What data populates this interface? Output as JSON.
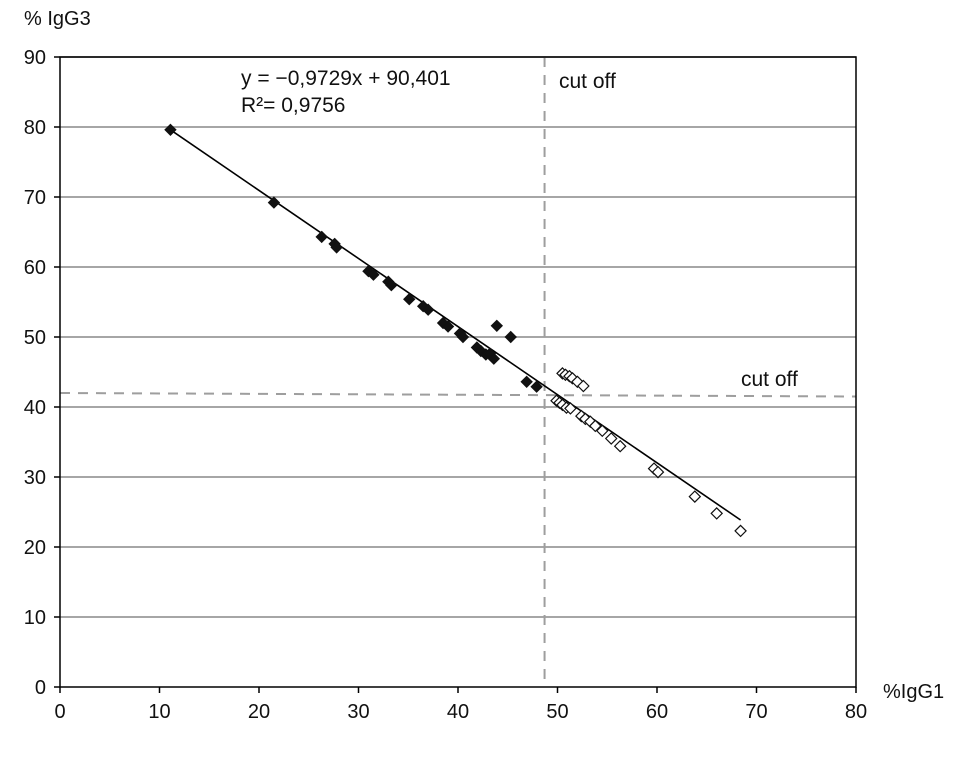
{
  "chart_data": {
    "type": "scatter",
    "xlabel": "%IgG1",
    "ylabel": "% IgG3",
    "xlim": [
      0,
      80
    ],
    "ylim": [
      0,
      90
    ],
    "x_ticks": [
      "0",
      "10",
      "20",
      "30",
      "40",
      "50",
      "60",
      "70",
      "80"
    ],
    "y_ticks": [
      "0",
      "10",
      "20",
      "30",
      "40",
      "50",
      "60",
      "70",
      "80",
      "90"
    ],
    "grid": "horizontal",
    "series": [
      {
        "marker": "filled-diamond",
        "color": "#111111",
        "points": [
          [
            11.1,
            79.6
          ],
          [
            21.5,
            69.2
          ],
          [
            26.3,
            64.3
          ],
          [
            27.6,
            63.3
          ],
          [
            27.8,
            62.8
          ],
          [
            31.0,
            59.4
          ],
          [
            31.5,
            58.9
          ],
          [
            33.0,
            57.9
          ],
          [
            33.3,
            57.4
          ],
          [
            35.1,
            55.4
          ],
          [
            36.5,
            54.4
          ],
          [
            37.0,
            53.9
          ],
          [
            38.5,
            52.0
          ],
          [
            39.0,
            51.5
          ],
          [
            40.2,
            50.5
          ],
          [
            40.5,
            50.0
          ],
          [
            41.9,
            48.5
          ],
          [
            42.3,
            48.0
          ],
          [
            42.8,
            47.5
          ],
          [
            43.2,
            47.6
          ],
          [
            43.6,
            46.9
          ],
          [
            43.9,
            51.6
          ],
          [
            45.3,
            50.0
          ],
          [
            46.9,
            43.6
          ],
          [
            47.9,
            42.9
          ]
        ]
      },
      {
        "marker": "open-diamond",
        "color": "#111111",
        "points": [
          [
            50.5,
            44.8
          ],
          [
            50.8,
            44.6
          ],
          [
            51.2,
            44.4
          ],
          [
            51.5,
            44.1
          ],
          [
            52.0,
            43.6
          ],
          [
            52.6,
            43.0
          ],
          [
            49.9,
            40.9
          ],
          [
            50.2,
            40.6
          ],
          [
            50.5,
            40.3
          ],
          [
            50.9,
            39.9
          ],
          [
            51.3,
            39.8
          ],
          [
            52.4,
            38.7
          ],
          [
            52.8,
            38.3
          ],
          [
            53.3,
            37.9
          ],
          [
            53.8,
            37.3
          ],
          [
            54.5,
            36.6
          ],
          [
            55.4,
            35.5
          ],
          [
            56.3,
            34.4
          ],
          [
            59.7,
            31.2
          ],
          [
            60.1,
            30.7
          ],
          [
            63.8,
            27.2
          ],
          [
            66.0,
            24.8
          ],
          [
            68.4,
            22.3
          ]
        ]
      }
    ],
    "trendline": {
      "x_range": [
        11.1,
        68.4
      ],
      "slope": -0.9729,
      "intercept": 90.401,
      "equation": "y = −0,9729x + 90,401",
      "r2": "R²= 0,9756"
    },
    "cutoffs": {
      "vertical": {
        "x": 48.7,
        "label": "cut off"
      },
      "horizontal": {
        "y_start": 42.0,
        "y_end": 41.5,
        "label": "cut off"
      }
    }
  }
}
